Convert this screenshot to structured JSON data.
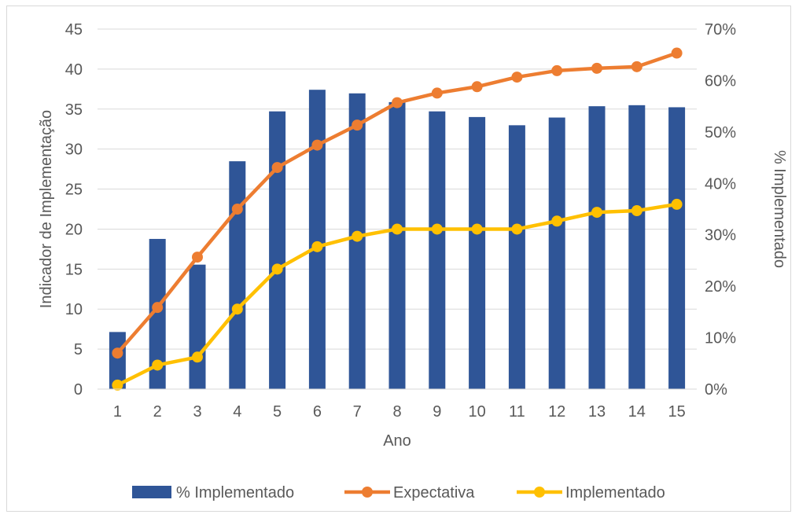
{
  "chart_data": {
    "type": "bar",
    "title": "",
    "categories": [
      "1",
      "2",
      "3",
      "4",
      "5",
      "6",
      "7",
      "8",
      "9",
      "10",
      "11",
      "12",
      "13",
      "14",
      "15"
    ],
    "xlabel": "Ano",
    "ylabel": "Indicador de Implementação",
    "y2label": "% Implementado",
    "ylim": [
      0,
      45
    ],
    "y2lim": [
      0,
      0.7
    ],
    "yticks": [
      "0",
      "5",
      "10",
      "15",
      "20",
      "25",
      "30",
      "35",
      "40",
      "45"
    ],
    "y2ticks": [
      "0%",
      "10%",
      "20%",
      "30%",
      "40%",
      "50%",
      "60%",
      "70%"
    ],
    "series": [
      {
        "name": "% Implementado",
        "type": "bar",
        "axis": "right",
        "color": "#2F5597",
        "values": [
          0.111,
          0.292,
          0.242,
          0.443,
          0.54,
          0.582,
          0.575,
          0.558,
          0.54,
          0.529,
          0.513,
          0.528,
          0.55,
          0.552,
          0.548
        ]
      },
      {
        "name": "Expectativa",
        "type": "line",
        "axis": "left",
        "color": "#ED7D31",
        "values": [
          4.5,
          10.2,
          16.5,
          22.5,
          27.7,
          30.5,
          33.0,
          35.8,
          37.0,
          37.8,
          39.0,
          39.8,
          40.1,
          40.3,
          42.0
        ]
      },
      {
        "name": "Implementado",
        "type": "line",
        "axis": "left",
        "color": "#FFC000",
        "values": [
          0.5,
          3.0,
          4.0,
          10.0,
          15.0,
          17.8,
          19.1,
          20.0,
          20.0,
          20.0,
          20.0,
          21.0,
          22.1,
          22.3,
          23.1
        ]
      }
    ],
    "legend_position": "bottom",
    "grid": true
  }
}
